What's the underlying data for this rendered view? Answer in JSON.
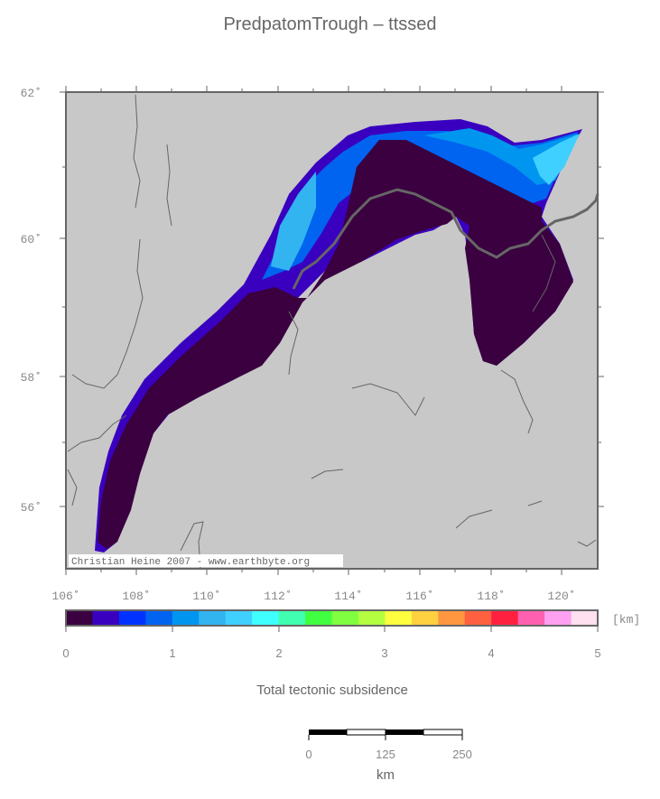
{
  "title": "PredpatomTrough – ttssed",
  "map": {
    "lat_labels": [
      "62˚",
      "60˚",
      "58˚",
      "56˚"
    ],
    "lon_labels": [
      "106˚",
      "108˚",
      "110˚",
      "112˚",
      "114˚",
      "116˚",
      "118˚",
      "120˚"
    ],
    "credit": "Christian Heine 2007 - www.earthbyte.org",
    "background_color": "#c8c8c8"
  },
  "colorbar": {
    "unit": "[km]",
    "tick_labels": [
      "0",
      "1",
      "2",
      "3",
      "4",
      "5"
    ],
    "caption": "Total tectonic subsidence",
    "colors": [
      "#3a0040",
      "#3a00c0",
      "#0032ff",
      "#0064f0",
      "#0096f0",
      "#32b4f0",
      "#40d0ff",
      "#40ffff",
      "#40ffb0",
      "#40ff40",
      "#80ff40",
      "#b4ff40",
      "#ffff40",
      "#ffd040",
      "#ff9640",
      "#ff6040",
      "#ff2040",
      "#ff60b0",
      "#ffa0f0",
      "#ffe0f0"
    ]
  },
  "scalebar": {
    "tick_labels": [
      "0",
      "125",
      "250"
    ],
    "unit": "km"
  }
}
